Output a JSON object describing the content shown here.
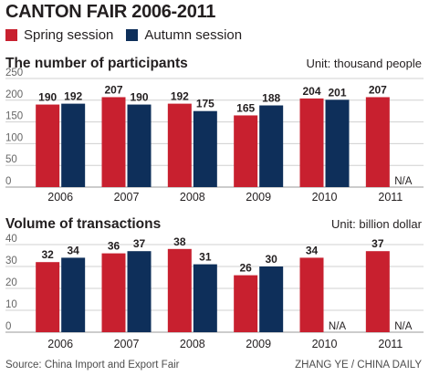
{
  "header": {
    "title": "CANTON FAIR 2006-2011",
    "legend": [
      {
        "label": "Spring session",
        "color": "#c8202f"
      },
      {
        "label": "Autumn session",
        "color": "#0e2f5a"
      }
    ]
  },
  "chart_data": [
    {
      "type": "bar",
      "title": "The number of participants",
      "unit": "Unit: thousand people",
      "categories": [
        "2006",
        "2007",
        "2008",
        "2009",
        "2010",
        "2011"
      ],
      "yticks": [
        0,
        50,
        100,
        150,
        200,
        250
      ],
      "ylim": [
        0,
        250
      ],
      "grid": true,
      "series": [
        {
          "name": "Spring session",
          "color": "#c8202f",
          "values": [
            190,
            207,
            192,
            165,
            204,
            207
          ]
        },
        {
          "name": "Autumn session",
          "color": "#0e2f5a",
          "values": [
            192,
            190,
            175,
            188,
            201,
            null
          ]
        }
      ],
      "missing_label": "N/A"
    },
    {
      "type": "bar",
      "title": "Volume of transactions",
      "unit": "Unit: billion dollar",
      "categories": [
        "2006",
        "2007",
        "2008",
        "2009",
        "2010",
        "2011"
      ],
      "yticks": [
        0,
        10,
        20,
        30,
        40
      ],
      "ylim": [
        0,
        40
      ],
      "grid": true,
      "series": [
        {
          "name": "Spring session",
          "color": "#c8202f",
          "values": [
            32,
            36,
            38,
            26,
            34,
            37
          ]
        },
        {
          "name": "Autumn session",
          "color": "#0e2f5a",
          "values": [
            34,
            37,
            31,
            30,
            null,
            null
          ]
        }
      ],
      "missing_label": "N/A"
    }
  ],
  "footer": {
    "source": "Source: China Import and Export Fair",
    "credit": "ZHANG YE / CHINA DAILY"
  }
}
